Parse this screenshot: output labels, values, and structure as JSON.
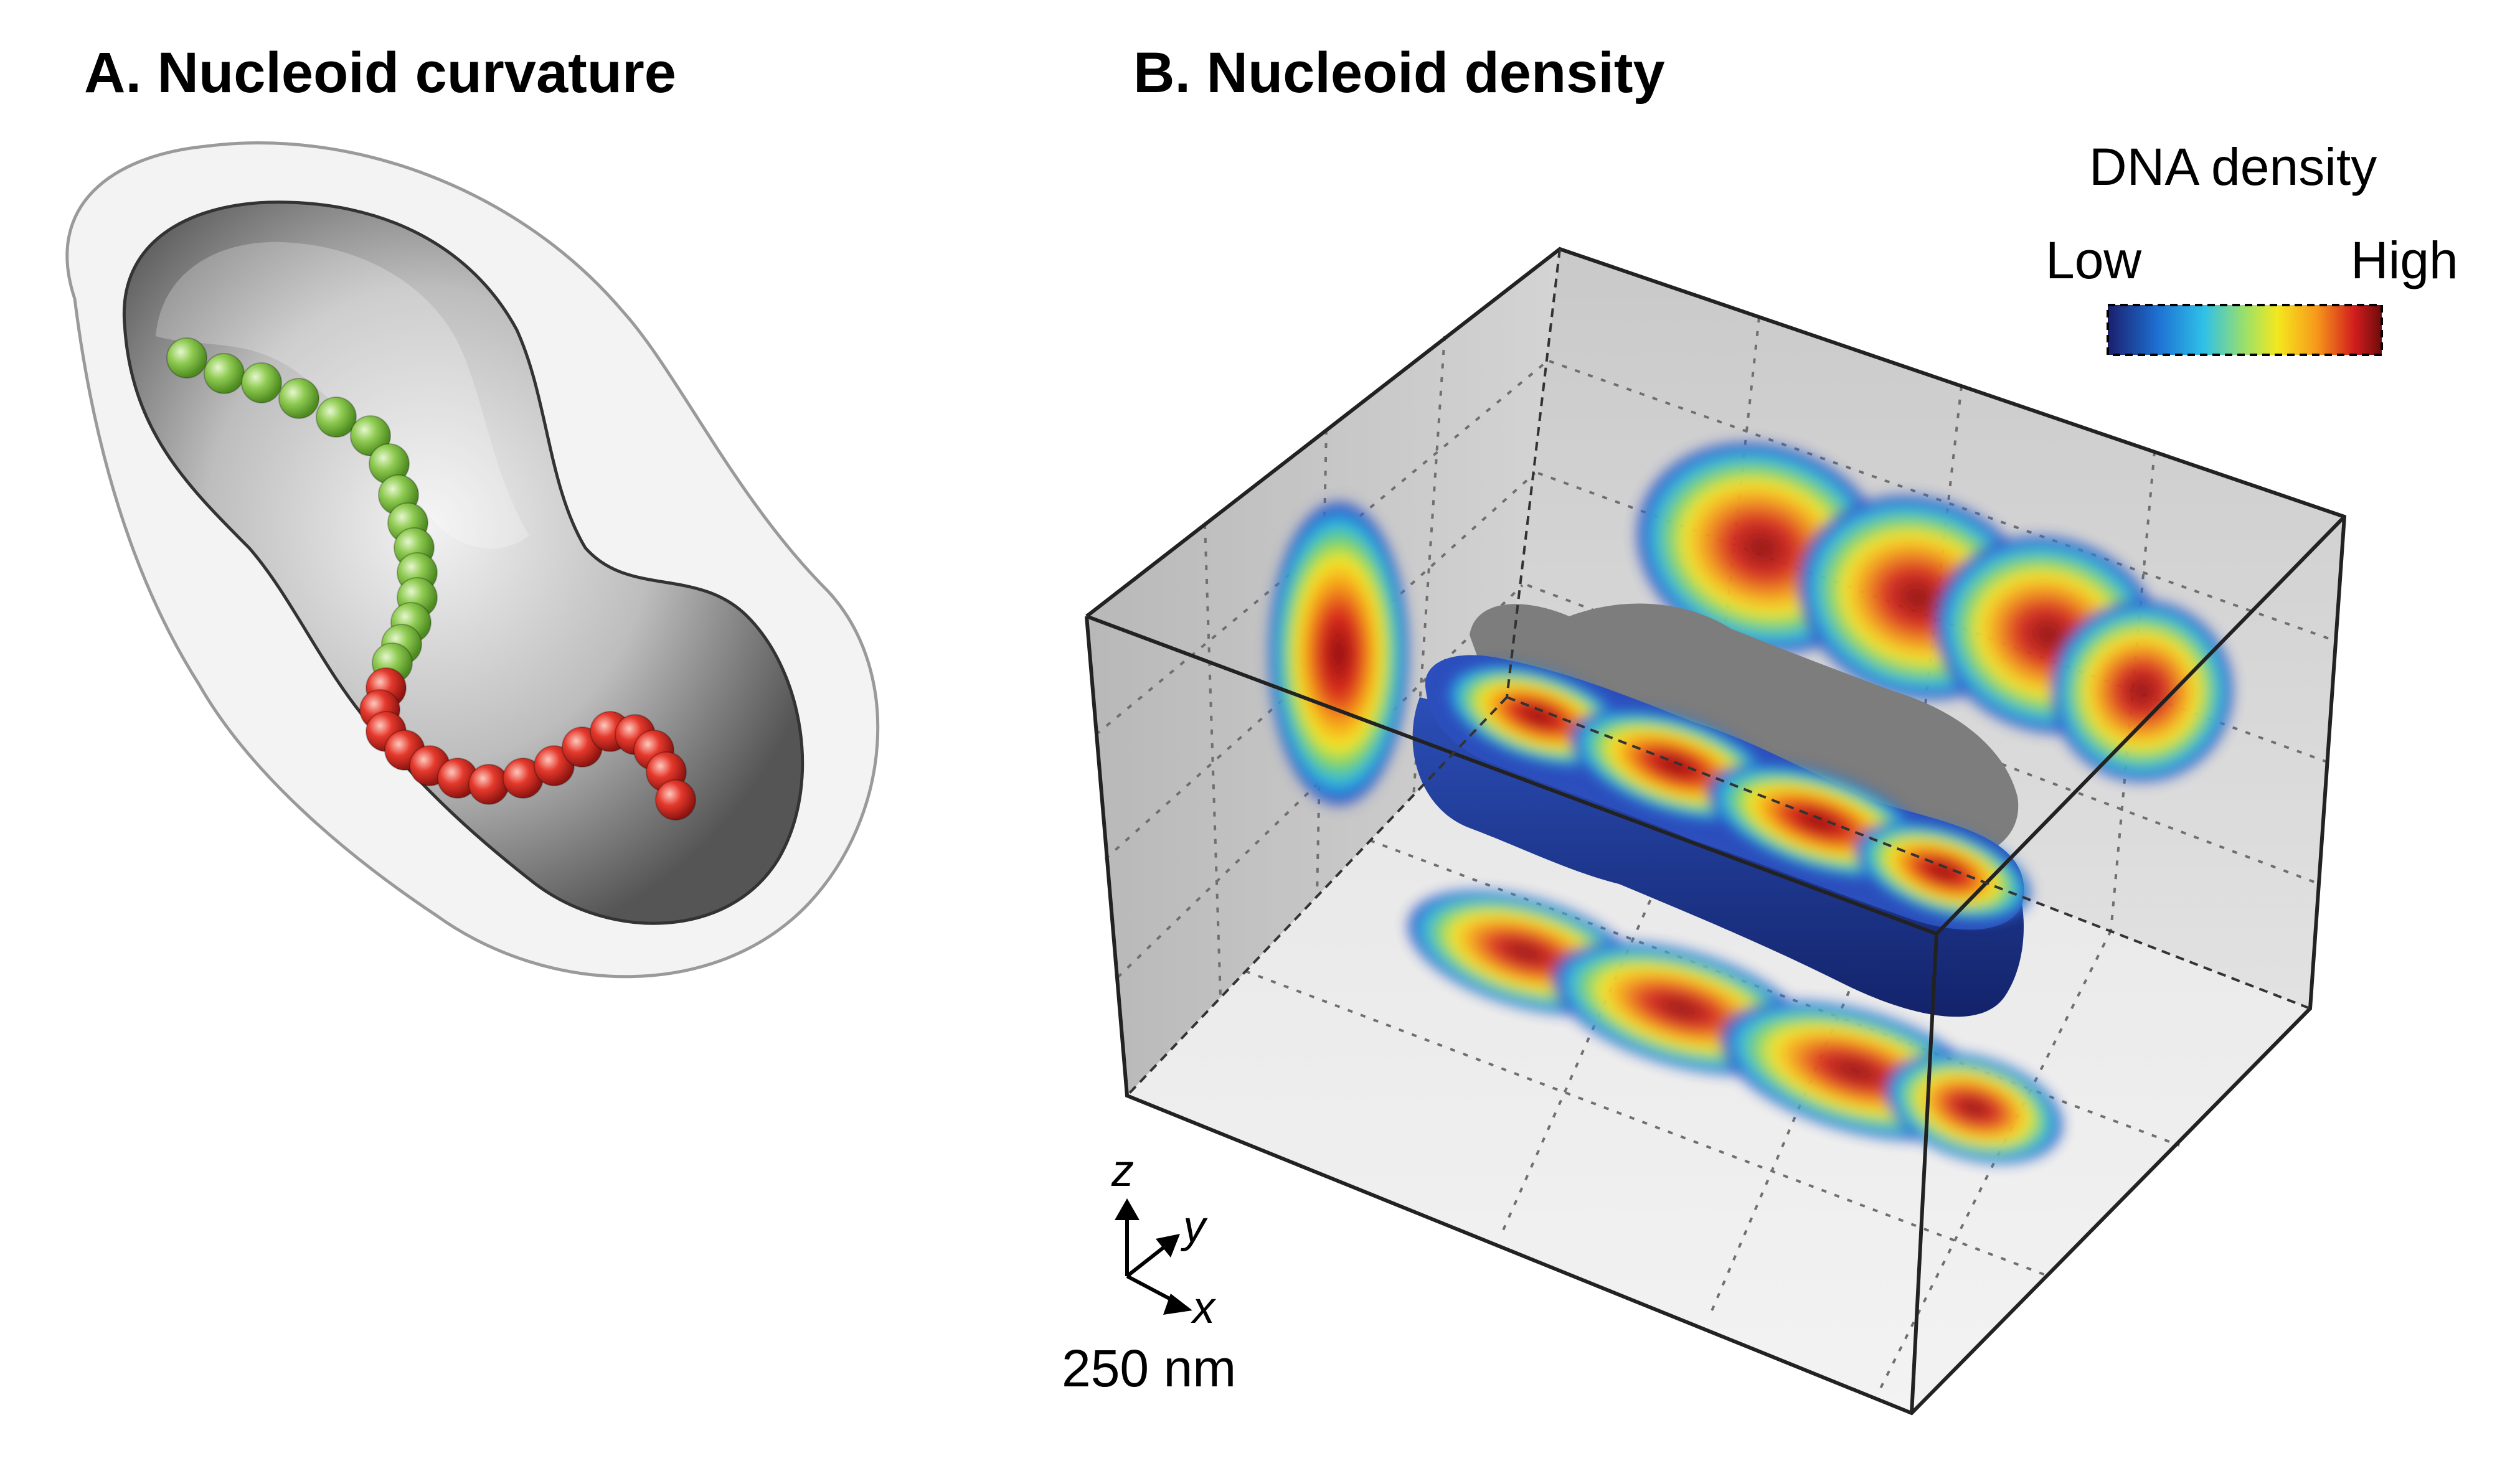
{
  "panels": {
    "a": {
      "title": "A. Nucleoid curvature"
    },
    "b": {
      "title": "B. Nucleoid density"
    }
  },
  "colorbar": {
    "title": "DNA density",
    "low_label": "Low",
    "high_label": "High",
    "colors": [
      "#1b1f6e",
      "#1d6fd1",
      "#2fc0e8",
      "#9be06a",
      "#f4e81e",
      "#f79a1b",
      "#d21d1d",
      "#6e0b0b"
    ]
  },
  "axes_indicator": {
    "z_label": "z",
    "y_label": "y",
    "x_label": "x",
    "scale_label": "250 nm"
  },
  "colors": {
    "green_bead": "#7cc243",
    "red_bead": "#e0342a",
    "cell_outline": "#b0b0b0",
    "nucleoid_dark": "#4a4a4a"
  }
}
